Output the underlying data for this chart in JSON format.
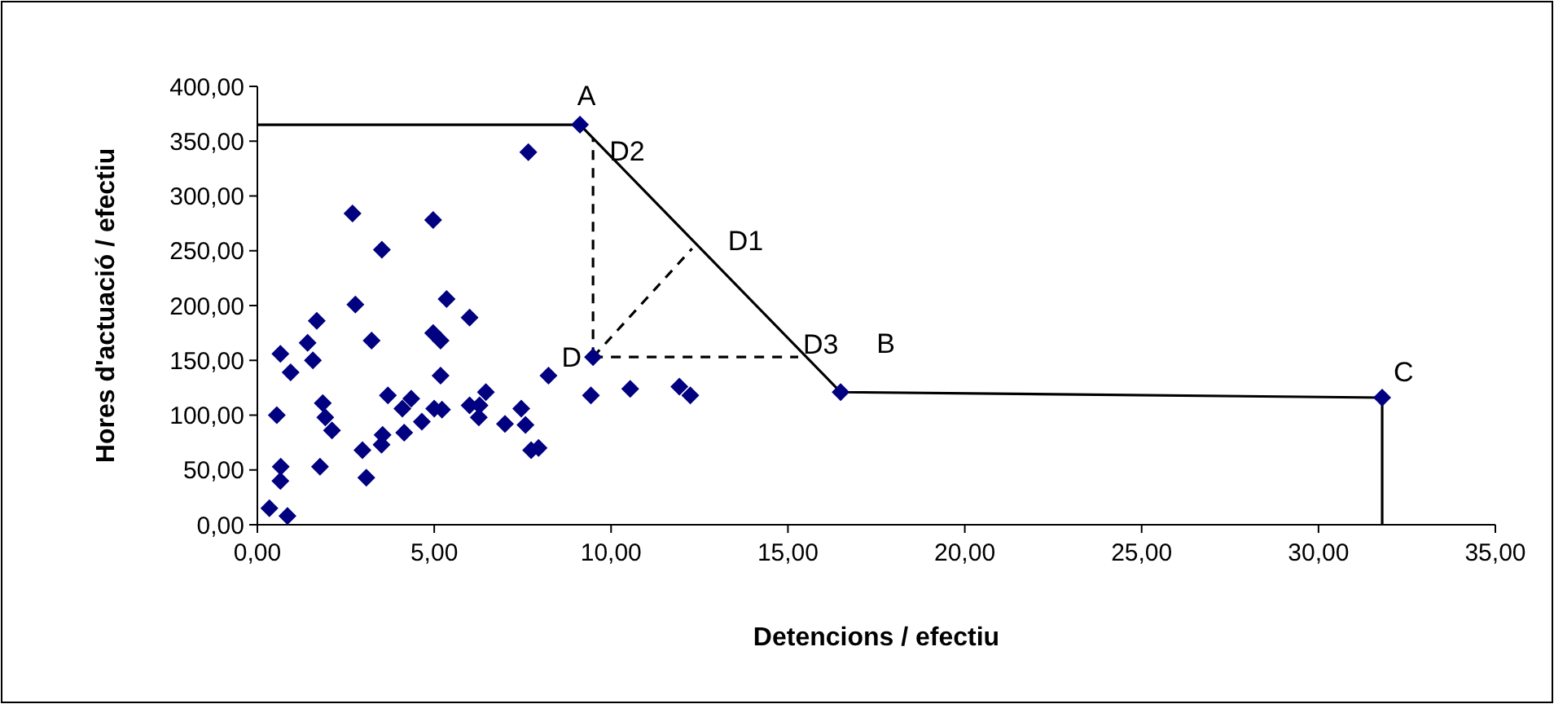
{
  "chart_data": {
    "type": "scatter",
    "xlabel": "Detencions / efectiu",
    "ylabel": "Hores d'actuació / efectiu",
    "xlim": [
      0,
      35
    ],
    "ylim": [
      0,
      400
    ],
    "xticks": [
      {
        "value": 0,
        "label": "0,00"
      },
      {
        "value": 5,
        "label": "5,00"
      },
      {
        "value": 10,
        "label": "10,00"
      },
      {
        "value": 15,
        "label": "15,00"
      },
      {
        "value": 20,
        "label": "20,00"
      },
      {
        "value": 25,
        "label": "25,00"
      },
      {
        "value": 30,
        "label": "30,00"
      },
      {
        "value": 35,
        "label": "35,00"
      }
    ],
    "yticks": [
      {
        "value": 0,
        "label": "0,00"
      },
      {
        "value": 50,
        "label": "50,00"
      },
      {
        "value": 100,
        "label": "100,00"
      },
      {
        "value": 150,
        "label": "150,00"
      },
      {
        "value": 200,
        "label": "200,00"
      },
      {
        "value": 250,
        "label": "250,00"
      },
      {
        "value": 300,
        "label": "300,00"
      },
      {
        "value": 350,
        "label": "350,00"
      },
      {
        "value": 400,
        "label": "400,00"
      }
    ],
    "grid": false,
    "series": [
      {
        "type": "line",
        "color": "#000000",
        "marker": "none",
        "line_style": "solid",
        "x": [
          0,
          9.12,
          16.49,
          31.8,
          31.8
        ],
        "values": [
          365,
          365,
          121,
          116,
          0
        ]
      },
      {
        "type": "line",
        "color": "#000000",
        "marker": "none",
        "line_style": "dashed",
        "x": [
          9.49,
          9.49
        ],
        "values": [
          153,
          353
        ]
      },
      {
        "type": "line",
        "color": "#000000",
        "marker": "none",
        "line_style": "dashed",
        "x": [
          9.49,
          12.29
        ],
        "values": [
          153,
          252
        ]
      },
      {
        "type": "line",
        "color": "#000000",
        "marker": "none",
        "line_style": "dashed",
        "x": [
          9.49,
          15.29
        ],
        "values": [
          153,
          153
        ]
      },
      {
        "color": "#000080",
        "marker": "diamond",
        "x": [
          9.12,
          7.66,
          2.69,
          4.97,
          3.52,
          2.77,
          5.35,
          6.0,
          1.68,
          0.65,
          1.42,
          1.57,
          0.94,
          3.23,
          4.97,
          5.18,
          5.18,
          8.23,
          9.49,
          9.43,
          0.55,
          3.69,
          4.35,
          4.1,
          5.0,
          5.22,
          6.0,
          6.46,
          6.28,
          6.26,
          7.46,
          7.58,
          7.0,
          4.65,
          4.15,
          1.85,
          1.92,
          2.11,
          3.54,
          3.51,
          2.97,
          7.74,
          7.95,
          3.08,
          1.77,
          0.66,
          0.65,
          0.34,
          0.85,
          10.54,
          11.93,
          12.24,
          16.49,
          31.8
        ],
        "values": [
          365,
          340,
          284,
          278,
          251,
          201,
          206,
          189,
          186,
          156,
          166,
          150,
          139,
          168,
          175,
          168,
          136,
          136,
          153,
          118,
          100,
          118,
          115,
          106,
          106,
          105,
          109,
          121,
          109,
          98,
          106,
          91,
          92,
          94,
          84,
          111,
          98,
          86,
          82,
          73,
          68,
          68,
          70,
          43,
          53,
          53,
          40,
          15,
          8,
          124,
          126,
          118,
          121,
          116
        ]
      }
    ],
    "annotations": [
      {
        "text": "A",
        "x": 9.12,
        "y": 365
      },
      {
        "text": "D2",
        "x": 9.49,
        "y": 353
      },
      {
        "text": "D1",
        "x": 12.29,
        "y": 252
      },
      {
        "text": "D3",
        "x": 15.29,
        "y": 153
      },
      {
        "text": "B",
        "x": 16.49,
        "y": 121
      },
      {
        "text": "C",
        "x": 31.8,
        "y": 116
      },
      {
        "text": "D",
        "x": 9.49,
        "y": 153
      }
    ]
  }
}
